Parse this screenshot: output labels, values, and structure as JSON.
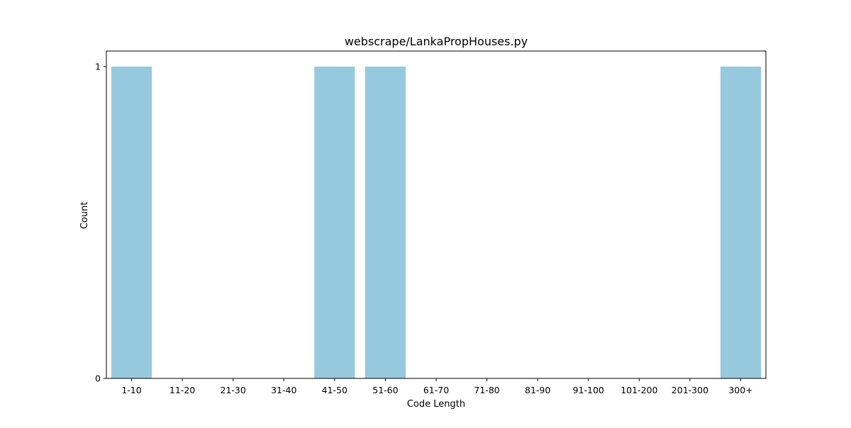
{
  "chart_data": {
    "type": "bar",
    "title": "webscrape/LankaPropHouses.py",
    "xlabel": "Code Length",
    "ylabel": "Count",
    "categories": [
      "1-10",
      "11-20",
      "21-30",
      "31-40",
      "41-50",
      "51-60",
      "61-70",
      "71-80",
      "81-90",
      "91-100",
      "101-200",
      "201-300",
      "300+"
    ],
    "values": [
      1,
      0,
      0,
      0,
      1,
      1,
      0,
      0,
      0,
      0,
      0,
      0,
      1
    ],
    "ylim": [
      0,
      1
    ],
    "yticks": [
      0,
      1
    ],
    "grid": false,
    "legend": "none",
    "bar_color": "#96c9de"
  }
}
